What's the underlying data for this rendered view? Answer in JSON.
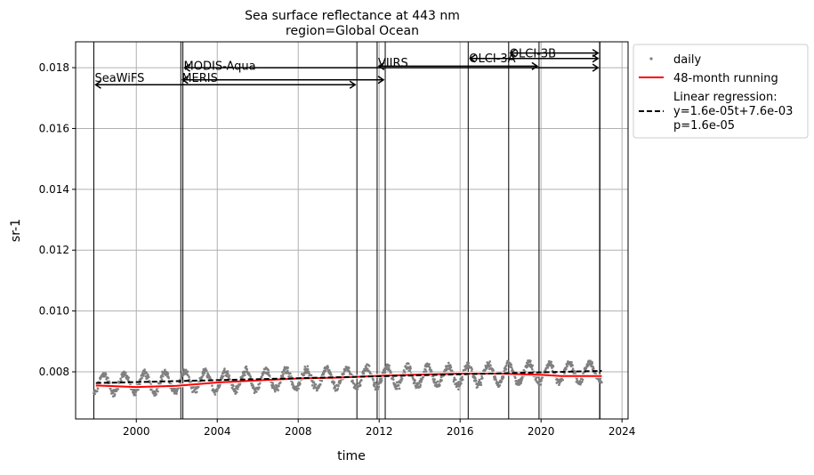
{
  "chart_data": {
    "type": "scatter",
    "title": "Sea surface reflectance at 443 nm",
    "subtitle": "region=Global Ocean",
    "xlabel": "time",
    "ylabel": "sr-1",
    "xlim": [
      1997.0,
      2024.3
    ],
    "ylim": [
      0.00645,
      0.01885
    ],
    "x_ticks": [
      2000,
      2004,
      2008,
      2012,
      2016,
      2020,
      2024
    ],
    "x_tick_labels": [
      "2000",
      "2004",
      "2008",
      "2012",
      "2016",
      "2020",
      "2024"
    ],
    "y_ticks": [
      0.008,
      0.01,
      0.012,
      0.014,
      0.016,
      0.018
    ],
    "y_tick_labels": [
      "0.008",
      "0.010",
      "0.012",
      "0.014",
      "0.016",
      "0.018"
    ],
    "grid": true,
    "legend_position": "outside-right",
    "colors": {
      "daily": "#808080",
      "running": "#ff0000",
      "regression": "#000000"
    },
    "series": [
      {
        "name": "daily",
        "kind": "scatter",
        "x_range": [
          1997.9,
          2023.0
        ],
        "trend": {
          "start": 0.0076,
          "end": 0.008
        },
        "seasonal_amplitude": 0.00032,
        "noise": 0.0001,
        "y_min": 0.00675,
        "y_max": 0.00865
      },
      {
        "name": "48-month running",
        "kind": "line",
        "x": [
          1998.0,
          2000.0,
          2002.0,
          2004.0,
          2006.0,
          2008.0,
          2010.0,
          2012.0,
          2014.0,
          2016.0,
          2018.0,
          2020.0,
          2021.0,
          2023.0
        ],
        "y": [
          0.00755,
          0.0075,
          0.00754,
          0.00765,
          0.00772,
          0.00778,
          0.00781,
          0.00787,
          0.00791,
          0.00794,
          0.00794,
          0.0079,
          0.00786,
          0.00786
        ]
      },
      {
        "name": "Linear regression:\ny=1.6e-05t+7.6e-03\np=1.6e-05",
        "legend_lines": [
          "Linear regression:",
          "y=1.6e-05t+7.6e-03",
          "p=1.6e-05"
        ],
        "kind": "line",
        "style": "dashed",
        "x": [
          1998.0,
          2023.0
        ],
        "y": [
          0.00763,
          0.00803
        ]
      }
    ],
    "missions": [
      {
        "name": "SeaWiFS",
        "start": 1997.9,
        "end": 2010.9,
        "label_y": 0.01765,
        "arrow_y": 0.01744
      },
      {
        "name": "MODIS-Aqua",
        "start": 2002.3,
        "end": 2022.9,
        "label_y": 0.01805,
        "arrow_y": 0.018
      },
      {
        "name": "MERIS",
        "start": 2002.2,
        "end": 2012.3,
        "label_y": 0.01765,
        "arrow_y": 0.0176
      },
      {
        "name": "VIIRS",
        "start": 2011.9,
        "end": 2019.9,
        "label_y": 0.01815,
        "arrow_y": 0.01805
      },
      {
        "name": "OLCI-3A",
        "start": 2016.4,
        "end": 2022.9,
        "label_y": 0.0183,
        "arrow_y": 0.0183
      },
      {
        "name": "OLCI-3B",
        "start": 2018.4,
        "end": 2022.9,
        "label_y": 0.01845,
        "arrow_y": 0.01848
      }
    ]
  }
}
